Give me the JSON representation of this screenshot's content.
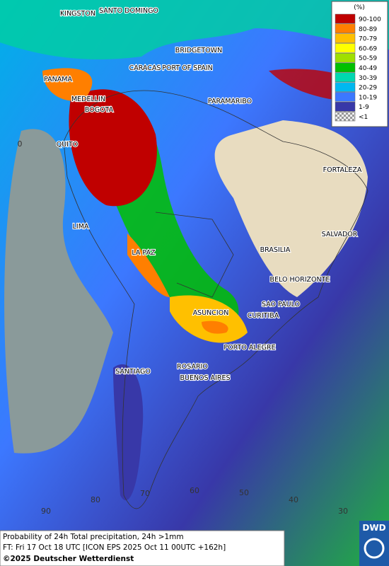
{
  "map": {
    "cities": [
      "KINGSTON",
      "SANTO DOMINGO",
      "BRIDGETOWN",
      "CARACAS",
      "PORT OF SPAIN",
      "PANAMA",
      "PARAMARIBO",
      "MEDELLIN",
      "BOGOTA",
      "QUITO",
      "FORTALEZA",
      "LIMA",
      "SALVADOR",
      "BRASILIA",
      "LA PAZ",
      "BELO HORIZONTE",
      "SAO PAULO",
      "ASUNCION",
      "CURITIBA",
      "PORTO ALEGRE",
      "ROSARIO",
      "SANTIAGO",
      "BUENOS AIRES"
    ],
    "grid_labels": [
      "0",
      "90",
      "80",
      "70",
      "60",
      "50",
      "40",
      "30"
    ],
    "legend": {
      "title": "(%)",
      "entries": [
        {
          "label": "90-100",
          "color": "#c00000"
        },
        {
          "label": "80-89",
          "color": "#ff7f00"
        },
        {
          "label": "70-79",
          "color": "#ffc000"
        },
        {
          "label": "60-69",
          "color": "#ffff00"
        },
        {
          "label": "50-59",
          "color": "#a0e000"
        },
        {
          "label": "40-49",
          "color": "#00c000"
        },
        {
          "label": "30-39",
          "color": "#00d8b0"
        },
        {
          "label": "20-29",
          "color": "#00b8f0"
        },
        {
          "label": "10-19",
          "color": "#3c78ff"
        },
        {
          "label": "1-9",
          "color": "#3838a8"
        },
        {
          "label": "<1",
          "color": "#bbbbbb"
        }
      ]
    },
    "footer": {
      "line1": "Probability of 24h Total precipitation, 24h >1mm",
      "line2": "FT: Fri 17 Oct 18 UTC [ICON EPS 2025 Oct 11 00UTC +162h]",
      "line3": "©2025 Deutscher Wetterdienst"
    },
    "logo": "DWD"
  }
}
